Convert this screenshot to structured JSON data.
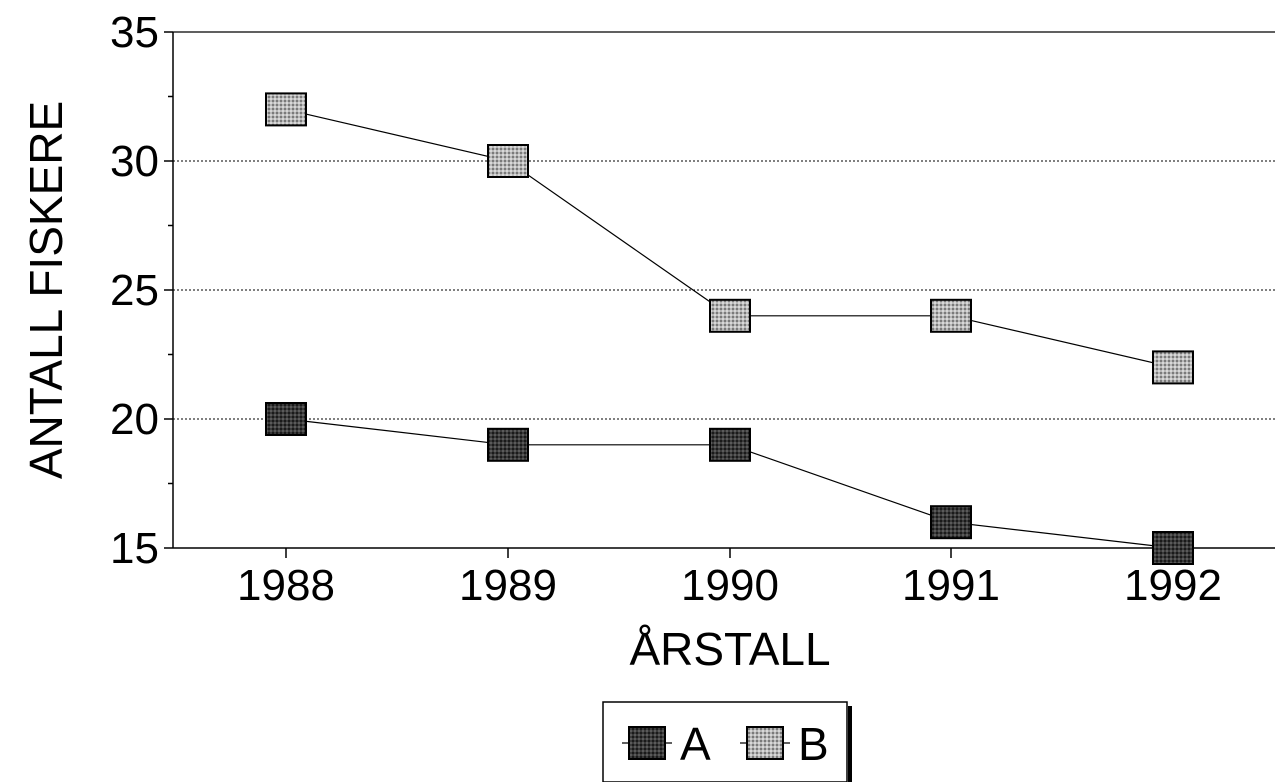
{
  "chart_data": {
    "type": "line",
    "title": "",
    "xlabel": "ÅRSTALL",
    "ylabel": "ANTALL FISKERE",
    "categories": [
      "1988",
      "1989",
      "1990",
      "1991",
      "1992"
    ],
    "ylim": [
      15,
      35
    ],
    "yticks": [
      "15",
      "20",
      "25",
      "30",
      "35"
    ],
    "grid": "horizontal-dotted",
    "legend_position": "bottom-center",
    "series": [
      {
        "name": "A",
        "values": [
          20,
          19,
          19,
          16,
          15
        ],
        "color": "#333333"
      },
      {
        "name": "B",
        "values": [
          32,
          30,
          24,
          24,
          22
        ],
        "color": "#aaaaaa"
      }
    ]
  }
}
